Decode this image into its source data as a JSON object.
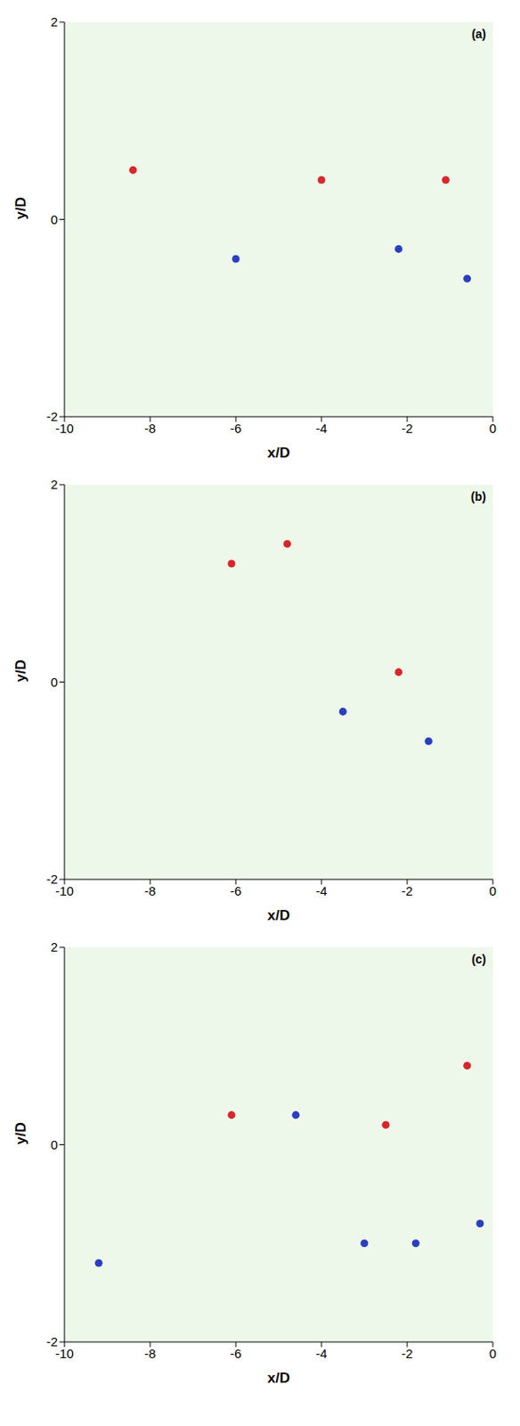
{
  "chart_data": [
    {
      "type": "scatter",
      "title": "(a)",
      "x_label": "x/D",
      "y_label": "y/D",
      "xlim": [
        -10,
        0
      ],
      "ylim": [
        -2,
        2
      ],
      "xticks": [
        -10,
        -8,
        -6,
        -4,
        -2,
        0
      ],
      "yticks": [
        -2,
        0,
        2
      ],
      "grid": false,
      "series": [
        {
          "color": "#d8262b",
          "marker": "circle",
          "x": [
            -8.4,
            -4.0,
            -1.1
          ],
          "y": [
            0.5,
            0.4,
            0.4
          ]
        },
        {
          "color": "#2a3fc0",
          "marker": "circle",
          "x": [
            -6.0,
            -2.2,
            -0.6
          ],
          "y": [
            -0.4,
            -0.3,
            -0.6
          ]
        }
      ]
    },
    {
      "type": "scatter",
      "title": "(b)",
      "x_label": "x/D",
      "y_label": "y/D",
      "xlim": [
        -10,
        0
      ],
      "ylim": [
        -2,
        2
      ],
      "xticks": [
        -10,
        -8,
        -6,
        -4,
        -2,
        0
      ],
      "yticks": [
        -2,
        0,
        2
      ],
      "grid": false,
      "series": [
        {
          "color": "#d8262b",
          "marker": "circle",
          "x": [
            -6.1,
            -4.8,
            -2.2
          ],
          "y": [
            1.2,
            1.4,
            0.1
          ]
        },
        {
          "color": "#2a3fc0",
          "marker": "circle",
          "x": [
            -3.5,
            -1.5
          ],
          "y": [
            -0.3,
            -0.6
          ]
        }
      ]
    },
    {
      "type": "scatter",
      "title": "(c)",
      "x_label": "x/D",
      "y_label": "y/D",
      "xlim": [
        -10,
        0
      ],
      "ylim": [
        -2,
        2
      ],
      "xticks": [
        -10,
        -8,
        -6,
        -4,
        -2,
        0
      ],
      "yticks": [
        -2,
        0,
        2
      ],
      "grid": false,
      "series": [
        {
          "color": "#d8262b",
          "marker": "circle",
          "x": [
            -6.1,
            -2.5,
            -0.6
          ],
          "y": [
            0.3,
            0.2,
            0.8
          ]
        },
        {
          "color": "#2a3fc0",
          "marker": "circle",
          "x": [
            -9.2,
            -4.6,
            -3.0,
            -1.8,
            -0.3
          ],
          "y": [
            -1.2,
            0.3,
            -1.0,
            -1.0,
            -0.8
          ]
        }
      ]
    }
  ]
}
